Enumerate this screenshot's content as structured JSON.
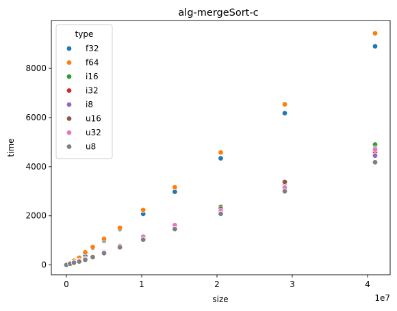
{
  "chart_data": {
    "type": "scatter",
    "title": "alg-mergeSort-c",
    "xlabel": "size",
    "ylabel": "time",
    "x_offset_label": "1e7",
    "xlim": [
      -2000000,
      43000000
    ],
    "ylim": [
      -400,
      9950
    ],
    "xticks": [
      0,
      10000000,
      20000000,
      30000000,
      40000000
    ],
    "xtick_labels": [
      "0",
      "1",
      "2",
      "3",
      "4"
    ],
    "yticks": [
      0,
      2000,
      4000,
      6000,
      8000
    ],
    "ytick_labels": [
      "0",
      "2000",
      "4000",
      "6000",
      "8000"
    ],
    "grid": false,
    "legend": {
      "title": "type",
      "placement": "upper-left"
    },
    "x": [
      0,
      500000,
      1000000,
      1700000,
      2500000,
      3500000,
      5000000,
      7100000,
      10200000,
      14400000,
      20500000,
      29000000,
      41000000
    ],
    "series": [
      {
        "name": "f32",
        "color": "#1f77b4",
        "values": [
          0,
          80,
          150,
          240,
          360,
          690,
          1000,
          1460,
          2080,
          2980,
          4340,
          6180,
          8900
        ]
      },
      {
        "name": "f64",
        "color": "#ff7f0e",
        "values": [
          0,
          90,
          170,
          290,
          510,
          730,
          1060,
          1510,
          2240,
          3160,
          4580,
          6540,
          9430
        ]
      },
      {
        "name": "i16",
        "color": "#2ca02c",
        "values": [
          0,
          60,
          100,
          160,
          230,
          330,
          500,
          740,
          1100,
          1550,
          2360,
          3260,
          4900
        ]
      },
      {
        "name": "i32",
        "color": "#d62728",
        "values": [
          0,
          60,
          100,
          170,
          240,
          340,
          510,
          760,
          1120,
          1580,
          2260,
          3330,
          4600
        ]
      },
      {
        "name": "i8",
        "color": "#9467bd",
        "values": [
          0,
          55,
          95,
          150,
          220,
          320,
          490,
          730,
          1060,
          1500,
          2110,
          3040,
          4450
        ]
      },
      {
        "name": "u16",
        "color": "#8c564b",
        "values": [
          0,
          60,
          100,
          170,
          240,
          340,
          520,
          770,
          1140,
          1600,
          2290,
          3380,
          4750
        ]
      },
      {
        "name": "u32",
        "color": "#e377c2",
        "values": [
          0,
          60,
          105,
          175,
          250,
          350,
          520,
          770,
          1150,
          1620,
          2200,
          3150,
          4700
        ]
      },
      {
        "name": "u8",
        "color": "#7f7f7f",
        "values": [
          0,
          50,
          90,
          140,
          210,
          320,
          480,
          720,
          1030,
          1460,
          2080,
          3000,
          4180
        ]
      }
    ]
  }
}
